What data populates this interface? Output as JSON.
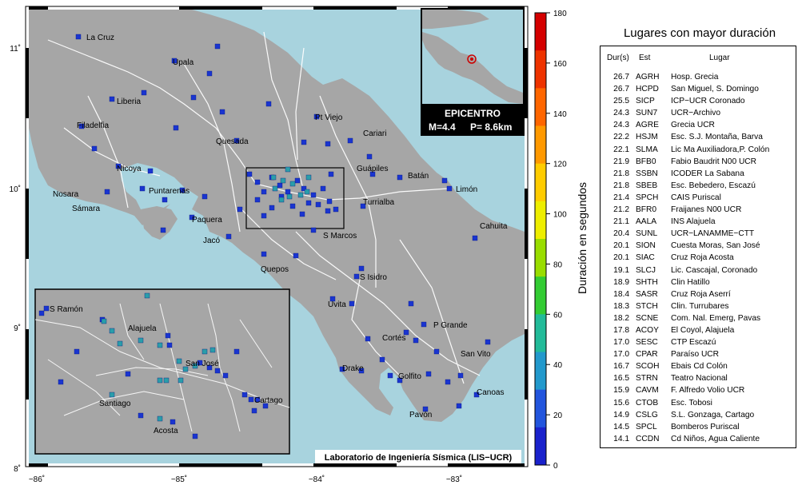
{
  "map": {
    "credit": "Laboratorio de Ingeniería Sísmica (LIS−UCR)",
    "lon_ticks": [
      "−86˚",
      "−85˚",
      "−84˚",
      "−83˚"
    ],
    "lat_ticks": [
      "11˚",
      "10˚",
      "9˚",
      "8˚"
    ],
    "colors": {
      "sea": "#a8d3de",
      "land": "#a6a6a6",
      "roads": "#ffffff",
      "station": "#1a35d0",
      "station_teal": "#2a9eaa"
    },
    "places": [
      {
        "name": "La Cruz"
      },
      {
        "name": "Upala"
      },
      {
        "name": "Liberia"
      },
      {
        "name": "Pt Viejo"
      },
      {
        "name": "Filadelfia"
      },
      {
        "name": "Cariari"
      },
      {
        "name": "Quesada"
      },
      {
        "name": "Guápiles"
      },
      {
        "name": "Nicoya"
      },
      {
        "name": "Batán"
      },
      {
        "name": "Limón"
      },
      {
        "name": "Nosara"
      },
      {
        "name": "Puntarenas"
      },
      {
        "name": "Turrialba"
      },
      {
        "name": "Sámara"
      },
      {
        "name": "Paquera"
      },
      {
        "name": "Cahuita"
      },
      {
        "name": "S Marcos"
      },
      {
        "name": "Jacó"
      },
      {
        "name": "Quepos"
      },
      {
        "name": "S Isidro"
      },
      {
        "name": "Uvita"
      },
      {
        "name": "P Grande"
      },
      {
        "name": "Cortés"
      },
      {
        "name": "San Vito"
      },
      {
        "name": "Drake"
      },
      {
        "name": "Golfito"
      },
      {
        "name": "Canoas"
      },
      {
        "name": "Pavón"
      }
    ],
    "inset_places": [
      {
        "name": "S Ramón"
      },
      {
        "name": "Alajuela"
      },
      {
        "name": "San José"
      },
      {
        "name": "Cartago"
      },
      {
        "name": "Santiago"
      },
      {
        "name": "Acosta"
      }
    ]
  },
  "epicentro": {
    "title": "EPICENTRO",
    "magnitude": "M=4.4",
    "depth": "P=  8.6km"
  },
  "colorbar": {
    "label": "Duración en segundos",
    "ticks": [
      "180",
      "160",
      "140",
      "120",
      "100",
      "80",
      "60",
      "40",
      "20",
      "0"
    ],
    "colors": [
      "#d40000",
      "#ee3300",
      "#ff6600",
      "#ff9900",
      "#ffcc00",
      "#eeee00",
      "#99dd00",
      "#33cc33",
      "#22bb99",
      "#2299cc",
      "#2255dd",
      "#1a22cc"
    ]
  },
  "places_panel": {
    "title": "Lugares con mayor duración",
    "headers": {
      "dur": "Dur(s)",
      "est": "Est",
      "lugar": "Lugar"
    },
    "rows": [
      {
        "dur": "26.7",
        "est": "AGRH",
        "lugar": "Hosp. Grecia"
      },
      {
        "dur": "26.7",
        "est": "HCPD",
        "lugar": "San Miguel, S. Domingo"
      },
      {
        "dur": "25.5",
        "est": "SICP",
        "lugar": "ICP−UCR Coronado"
      },
      {
        "dur": "24.3",
        "est": "SUN7",
        "lugar": "UCR−Archivo"
      },
      {
        "dur": "24.3",
        "est": "AGRE",
        "lugar": "Grecia UCR"
      },
      {
        "dur": "22.2",
        "est": "HSJM",
        "lugar": "Esc. S.J. Montaña, Barva"
      },
      {
        "dur": "22.1",
        "est": "SLMA",
        "lugar": "Lic Ma Auxiliadora,P. Colón"
      },
      {
        "dur": "21.9",
        "est": "BFB0",
        "lugar": "Fabio Baudrit N00 UCR"
      },
      {
        "dur": "21.8",
        "est": "SSBN",
        "lugar": "ICODER La Sabana"
      },
      {
        "dur": "21.8",
        "est": "SBEB",
        "lugar": "Esc. Bebedero, Escazú"
      },
      {
        "dur": "21.4",
        "est": "SPCH",
        "lugar": "CAIS Puriscal"
      },
      {
        "dur": "21.2",
        "est": "BFR0",
        "lugar": "Fraijanes N00 UCR"
      },
      {
        "dur": "21.1",
        "est": "AALA",
        "lugar": "INS Alajuela"
      },
      {
        "dur": "20.4",
        "est": "SUNL",
        "lugar": "UCR−LANAMME−CTT"
      },
      {
        "dur": "20.1",
        "est": "SION",
        "lugar": "Cuesta Moras, San José"
      },
      {
        "dur": "20.1",
        "est": "SIAC",
        "lugar": "Cruz Roja Acosta"
      },
      {
        "dur": "19.1",
        "est": "SLCJ",
        "lugar": "Lic. Cascajal, Coronado"
      },
      {
        "dur": "18.9",
        "est": "SHTH",
        "lugar": "Clin Hatillo"
      },
      {
        "dur": "18.4",
        "est": "SASR",
        "lugar": "Cruz Roja Aserrí"
      },
      {
        "dur": "18.3",
        "est": "STCH",
        "lugar": "Clin. Turrubares"
      },
      {
        "dur": "18.2",
        "est": "SCNE",
        "lugar": "Com. Nal. Emerg, Pavas"
      },
      {
        "dur": "17.8",
        "est": "ACOY",
        "lugar": "El Coyol, Alajuela"
      },
      {
        "dur": "17.0",
        "est": "SESC",
        "lugar": "CTP Escazú"
      },
      {
        "dur": "17.0",
        "est": "CPAR",
        "lugar": "Paraíso UCR"
      },
      {
        "dur": "16.7",
        "est": "SCOH",
        "lugar": "Ebais Cd Colón"
      },
      {
        "dur": "16.5",
        "est": "STRN",
        "lugar": "Teatro Nacional"
      },
      {
        "dur": "15.9",
        "est": "CAVM",
        "lugar": "F. Alfredo Volio UCR"
      },
      {
        "dur": "15.6",
        "est": "CTOB",
        "lugar": "Esc. Tobosi"
      },
      {
        "dur": "14.9",
        "est": "CSLG",
        "lugar": "S.L. Gonzaga, Cartago"
      },
      {
        "dur": "14.5",
        "est": "SPCL",
        "lugar": "Bomberos Puriscal"
      },
      {
        "dur": "14.1",
        "est": "CCDN",
        "lugar": "Cd Niños, Agua Caliente"
      }
    ]
  }
}
